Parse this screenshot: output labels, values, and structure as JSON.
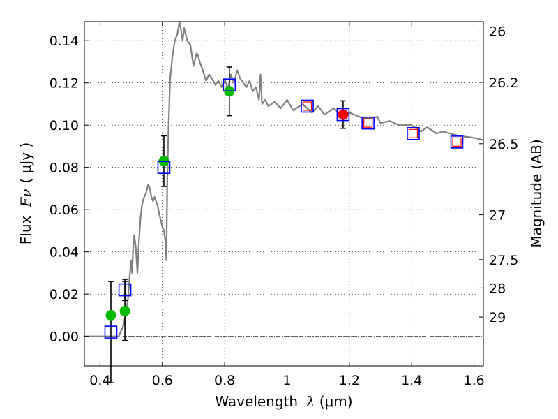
{
  "chart_data": {
    "type": "scatter",
    "xlabel": "Wavelength",
    "xlabel_symbol": "λ",
    "xlabel_unit": "(μm)",
    "ylabel": "Flux",
    "ylabel_symbol": "Fν",
    "ylabel_unit": "( μJy )",
    "y2label": "Magnitude (AB)",
    "xlim": [
      0.35,
      1.63
    ],
    "ylim": [
      -0.014,
      0.149
    ],
    "grid": true,
    "legend": "none",
    "x_ticks": [
      {
        "value": 0.4,
        "label": "0.4"
      },
      {
        "value": 0.6,
        "label": "0.6"
      },
      {
        "value": 0.8,
        "label": "0.8"
      },
      {
        "value": 1.0,
        "label": "1"
      },
      {
        "value": 1.2,
        "label": "1.2"
      },
      {
        "value": 1.4,
        "label": "1.4"
      },
      {
        "value": 1.6,
        "label": "1.6"
      }
    ],
    "y_ticks": [
      {
        "value": 0.0,
        "label": "0.00"
      },
      {
        "value": 0.02,
        "label": "0.02"
      },
      {
        "value": 0.04,
        "label": "0.04"
      },
      {
        "value": 0.06,
        "label": "0.06"
      },
      {
        "value": 0.08,
        "label": "0.08"
      },
      {
        "value": 0.1,
        "label": "0.10"
      },
      {
        "value": 0.12,
        "label": "0.12"
      },
      {
        "value": 0.14,
        "label": "0.14"
      }
    ],
    "y2_ticks": [
      {
        "mag": 26.0,
        "label": "26"
      },
      {
        "mag": 26.2,
        "label": "26.2"
      },
      {
        "mag": 26.5,
        "label": "26.5"
      },
      {
        "mag": 27.0,
        "label": "27"
      },
      {
        "mag": 27.5,
        "label": "27.5"
      },
      {
        "mag": 28.0,
        "label": "28"
      },
      {
        "mag": 29.0,
        "label": "29"
      }
    ],
    "zero_line": 0.0,
    "model_spectrum": {
      "name": "model SED",
      "color": "#808080",
      "x": [
        0.35,
        0.44,
        0.46,
        0.475,
        0.485,
        0.49,
        0.495,
        0.5,
        0.503,
        0.506,
        0.51,
        0.515,
        0.52,
        0.525,
        0.53,
        0.533,
        0.537,
        0.542,
        0.548,
        0.555,
        0.56,
        0.565,
        0.57,
        0.575,
        0.58,
        0.585,
        0.59,
        0.595,
        0.6,
        0.605,
        0.61,
        0.613,
        0.616,
        0.62,
        0.625,
        0.632,
        0.64,
        0.648,
        0.655,
        0.66,
        0.665,
        0.67,
        0.675,
        0.68,
        0.69,
        0.7,
        0.705,
        0.71,
        0.715,
        0.72,
        0.73,
        0.74,
        0.75,
        0.76,
        0.77,
        0.78,
        0.79,
        0.8,
        0.81,
        0.82,
        0.83,
        0.84,
        0.85,
        0.86,
        0.87,
        0.88,
        0.89,
        0.9,
        0.91,
        0.915,
        0.92,
        0.93,
        0.94,
        0.96,
        0.98,
        1.0,
        1.02,
        1.05,
        1.08,
        1.1,
        1.12,
        1.15,
        1.18,
        1.2,
        1.23,
        1.26,
        1.29,
        1.3,
        1.33,
        1.36,
        1.4,
        1.43,
        1.45,
        1.48,
        1.5,
        1.55,
        1.6,
        1.63
      ],
      "y": [
        0.0,
        0.0,
        0.0,
        0.005,
        0.012,
        0.018,
        0.028,
        0.036,
        0.03,
        0.04,
        0.048,
        0.042,
        0.03,
        0.045,
        0.056,
        0.06,
        0.064,
        0.066,
        0.068,
        0.072,
        0.07,
        0.066,
        0.064,
        0.066,
        0.064,
        0.062,
        0.058,
        0.055,
        0.052,
        0.05,
        0.045,
        0.036,
        0.075,
        0.1,
        0.122,
        0.132,
        0.14,
        0.143,
        0.149,
        0.145,
        0.14,
        0.146,
        0.143,
        0.14,
        0.138,
        0.128,
        0.131,
        0.134,
        0.133,
        0.13,
        0.126,
        0.121,
        0.124,
        0.122,
        0.119,
        0.121,
        0.118,
        0.122,
        0.117,
        0.124,
        0.12,
        0.126,
        0.122,
        0.12,
        0.118,
        0.121,
        0.116,
        0.118,
        0.112,
        0.124,
        0.11,
        0.112,
        0.109,
        0.111,
        0.108,
        0.112,
        0.107,
        0.11,
        0.106,
        0.109,
        0.105,
        0.108,
        0.104,
        0.106,
        0.104,
        0.103,
        0.104,
        0.101,
        0.102,
        0.1,
        0.1,
        0.097,
        0.099,
        0.096,
        0.097,
        0.095,
        0.094,
        0.093
      ]
    },
    "open_squares": {
      "name": "open squares",
      "color": "#0000ff",
      "points": [
        {
          "x": 0.435,
          "y": 0.002,
          "err": 0.024
        },
        {
          "x": 0.48,
          "y": 0.022,
          "err": 0.005
        },
        {
          "x": 0.605,
          "y": 0.08,
          "err": 0.0
        },
        {
          "x": 0.815,
          "y": 0.119,
          "err": 0.0
        },
        {
          "x": 1.065,
          "y": 0.109,
          "err": 0.0
        },
        {
          "x": 1.18,
          "y": 0.105,
          "err": 0.0
        },
        {
          "x": 1.26,
          "y": 0.101,
          "err": 0.0
        },
        {
          "x": 1.405,
          "y": 0.096,
          "err": 0.0
        },
        {
          "x": 1.545,
          "y": 0.092,
          "err": 0.0
        }
      ]
    },
    "inner_red_squares": {
      "name": "inner red squares",
      "color": "#ff0000",
      "points": [
        {
          "x": 1.065,
          "y": 0.109
        },
        {
          "x": 1.26,
          "y": 0.101
        },
        {
          "x": 1.405,
          "y": 0.096
        },
        {
          "x": 1.545,
          "y": 0.092
        }
      ]
    },
    "green_circles": {
      "name": "green circles",
      "color": "#00bb00",
      "points": [
        {
          "x": 0.435,
          "y": 0.01,
          "err": 0.0
        },
        {
          "x": 0.48,
          "y": 0.012,
          "err": 0.014
        },
        {
          "x": 0.605,
          "y": 0.083,
          "err": 0.012
        },
        {
          "x": 0.815,
          "y": 0.116,
          "err": 0.0115
        }
      ]
    },
    "red_circles": {
      "name": "red circles",
      "color": "#ff0000",
      "points": [
        {
          "x": 1.18,
          "y": 0.105,
          "err": 0.0065
        }
      ]
    }
  }
}
